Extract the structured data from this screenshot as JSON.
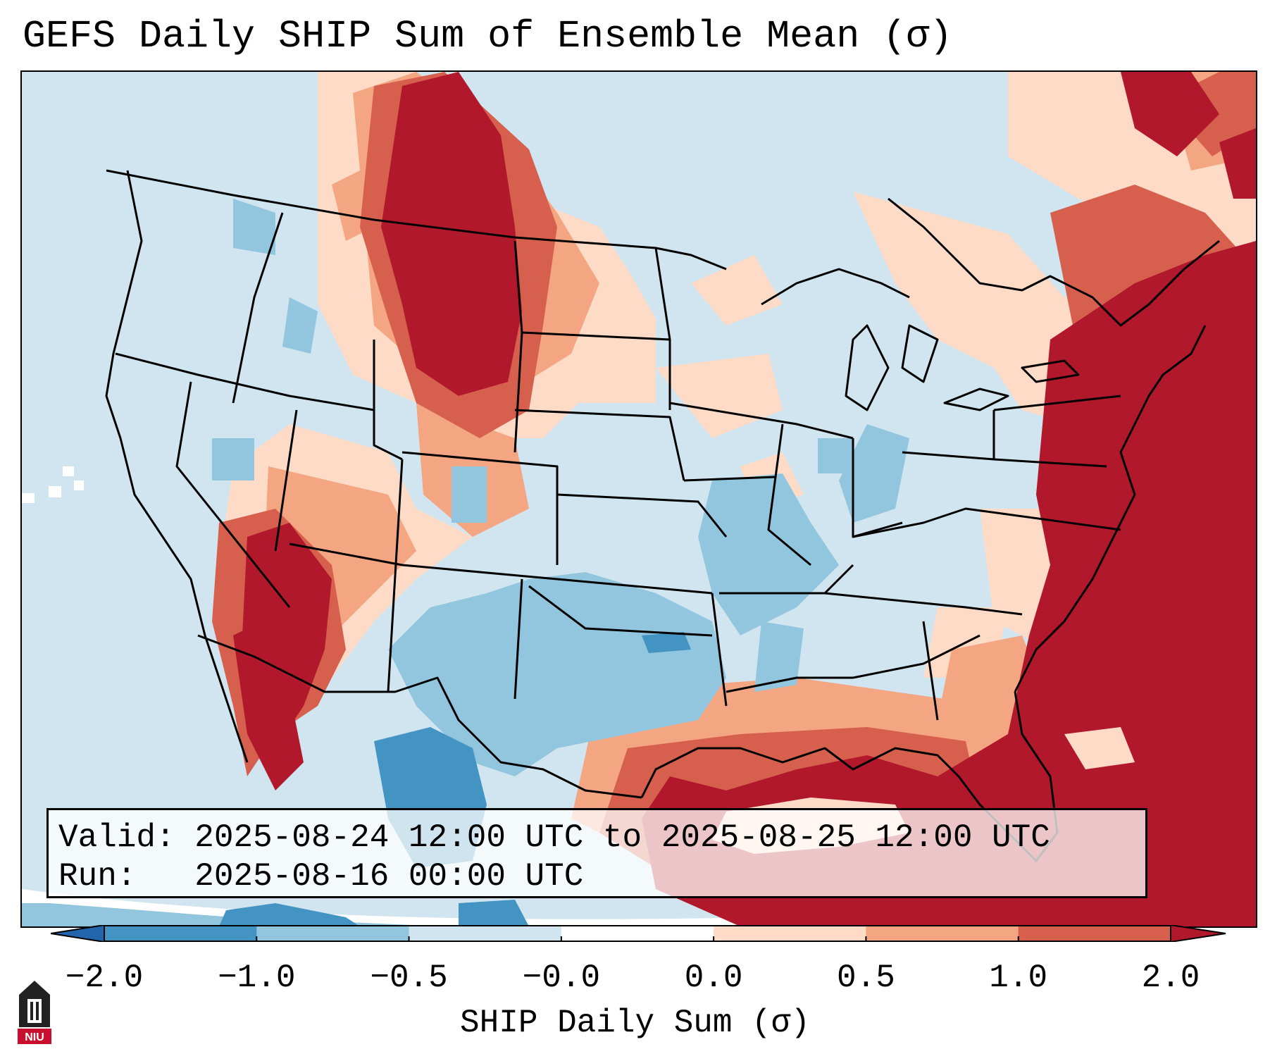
{
  "title": "GEFS Daily SHIP Sum of Ensemble Mean (σ)",
  "info": {
    "valid_label": "Valid:",
    "valid_value": "2025-08-24 12:00 UTC to 2025-08-25 12:00 UTC",
    "run_label": "Run:",
    "run_value": "2025-08-16 00:00 UTC"
  },
  "colorbar": {
    "title": "SHIP Daily Sum (σ)",
    "ticks": [
      "−2.0",
      "−1.0",
      "−0.5",
      "−0.0",
      "0.0",
      "0.5",
      "1.0",
      "2.0"
    ],
    "colors": [
      "#4393c3",
      "#92c5de",
      "#d1e5f0",
      "#ffffff",
      "#fddbc7",
      "#f4a582",
      "#d6604d"
    ],
    "under_color": "#2166ac",
    "over_color": "#b2182b"
  },
  "map_colors": {
    "ocean_background": "#d1e5f0",
    "strong_negative": "#4393c3",
    "negative": "#92c5de",
    "weak_negative": "#d1e5f0",
    "weak_positive": "#fddbc7",
    "positive": "#f4a582",
    "strong_positive": "#d6604d",
    "extreme_positive": "#b2182b"
  },
  "logo": {
    "text": "NIU",
    "icon": "university-tower-icon"
  }
}
